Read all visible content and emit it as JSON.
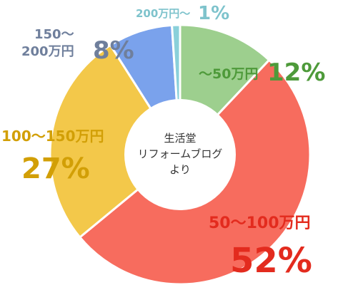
{
  "chart_data": {
    "type": "pie",
    "variant": "donut",
    "center_label": [
      "生活堂",
      "リフォームブログ",
      "より"
    ],
    "slices": [
      {
        "name": "〜50万円",
        "value": 12,
        "pct_text": "12%",
        "color": "#9dcf8e",
        "label_color": "#4e9a3a"
      },
      {
        "name": "50〜100万円",
        "value": 52,
        "pct_text": "52%",
        "color": "#f76c5e",
        "label_color": "#e32b1e"
      },
      {
        "name": "100〜150万円",
        "value": 27,
        "pct_text": "27%",
        "color": "#f3c84a",
        "label_color": "#d29f06"
      },
      {
        "name": "150〜200万円",
        "value": 8,
        "pct_text": "8%",
        "color": "#7aa2ec",
        "label_color": "#6f7f9c"
      },
      {
        "name": "200万円〜",
        "value": 1,
        "pct_text": "1%",
        "color": "#8ad0da",
        "label_color": "#7ec3cc"
      }
    ]
  }
}
